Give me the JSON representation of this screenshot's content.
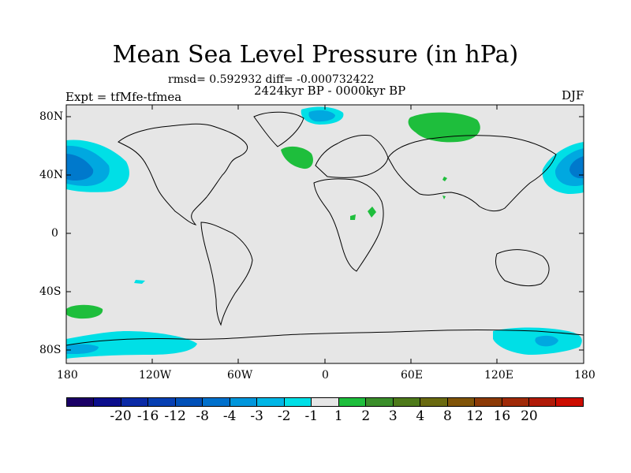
{
  "title": "Mean Sea Level Pressure (in hPa)",
  "stats": "rmsd= 0.592932  diff= -0.000732422",
  "period": "2424kyr BP - 0000kyr BP",
  "experiment": "Expt = tfMfe-tfmea",
  "season": "DJF",
  "map": {
    "ocean_color": "#e6e6e6",
    "lat_labels": [
      "80N",
      "40N",
      "0",
      "40S",
      "80S"
    ],
    "lon_labels": [
      "180",
      "120W",
      "60W",
      "0",
      "60E",
      "120E",
      "180"
    ],
    "anomaly_colors": {
      "neg_weak": "#00dfe6",
      "neg_mid": "#00a8e0",
      "neg_strong": "#0079cc",
      "pos_weak": "#1ebe3c"
    }
  },
  "colorbar": {
    "colors": [
      "#1a0066",
      "#0b0e8c",
      "#0a2aa6",
      "#063fb2",
      "#0050b8",
      "#0070cc",
      "#0096dc",
      "#00b6e6",
      "#00dfe6",
      "#e6e6e6",
      "#1ebe3c",
      "#3a8e2a",
      "#4e7a1a",
      "#6a6a10",
      "#805408",
      "#8c3a06",
      "#a02a08",
      "#b01a08",
      "#cc0c00"
    ],
    "labels": [
      "-20",
      "-16",
      "-12",
      "-8",
      "-4",
      "-3",
      "-2",
      "-1",
      "1",
      "2",
      "3",
      "4",
      "8",
      "12",
      "16",
      "20"
    ]
  }
}
